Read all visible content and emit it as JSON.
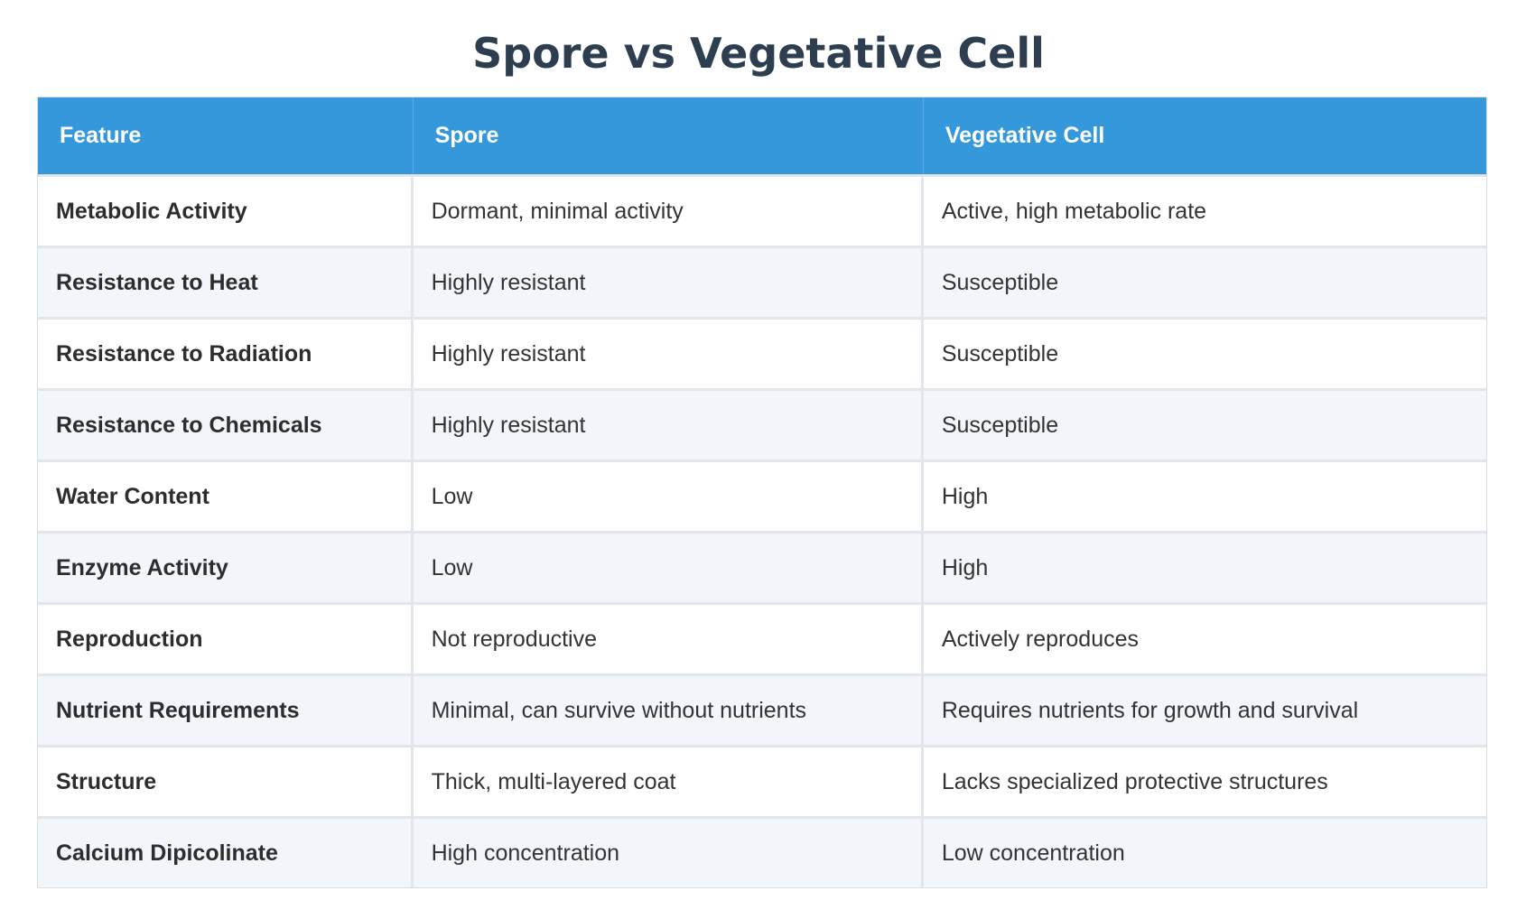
{
  "title": "Spore vs Vegetative Cell",
  "table": {
    "headers": [
      "Feature",
      "Spore",
      "Vegetative Cell"
    ],
    "rows": [
      [
        "Metabolic Activity",
        "Dormant, minimal activity",
        "Active, high metabolic rate"
      ],
      [
        "Resistance to Heat",
        "Highly resistant",
        "Susceptible"
      ],
      [
        "Resistance to Radiation",
        "Highly resistant",
        "Susceptible"
      ],
      [
        "Resistance to Chemicals",
        "Highly resistant",
        "Susceptible"
      ],
      [
        "Water Content",
        "Low",
        "High"
      ],
      [
        "Enzyme Activity",
        "Low",
        "High"
      ],
      [
        "Reproduction",
        "Not reproductive",
        "Actively reproduces"
      ],
      [
        "Nutrient Requirements",
        "Minimal, can survive without nutrients",
        "Requires nutrients for growth and survival"
      ],
      [
        "Structure",
        "Thick, multi-layered coat",
        "Lacks specialized protective structures"
      ],
      [
        "Calcium Dipicolinate",
        "High concentration",
        "Low concentration"
      ]
    ]
  },
  "colors": {
    "header_bg": "#3498db",
    "header_text": "#ffffff",
    "title_text": "#2c3e50",
    "row_alt_bg": "#f2f5f9"
  }
}
